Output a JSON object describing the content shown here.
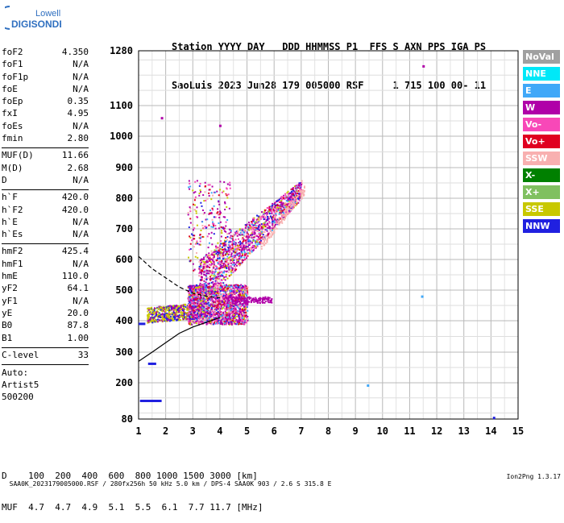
{
  "logo": {
    "line1": "Lowell",
    "line2": "DIGISONDE"
  },
  "header": {
    "line1": "Station YYYY DAY   DDD HHMMSS P1  FFS S AXN PPS IGA PS",
    "line2": "SaoLuis 2023 Jun28 179 005000 RSF     1 715 100 00- 11"
  },
  "params": [
    {
      "group": [
        {
          "name": "foF2",
          "value": "4.350"
        },
        {
          "name": "foF1",
          "value": "N/A"
        },
        {
          "name": "foF1p",
          "value": "N/A"
        },
        {
          "name": "foE",
          "value": "N/A"
        },
        {
          "name": "foEp",
          "value": "0.35"
        },
        {
          "name": "fxI",
          "value": "4.95"
        },
        {
          "name": "foEs",
          "value": "N/A"
        },
        {
          "name": "fmin",
          "value": "2.80"
        }
      ]
    },
    {
      "group": [
        {
          "name": "MUF(D)",
          "value": "11.66"
        },
        {
          "name": "M(D)",
          "value": "2.68"
        },
        {
          "name": "D",
          "value": "N/A"
        }
      ]
    },
    {
      "group": [
        {
          "name": "h`F",
          "value": "420.0"
        },
        {
          "name": "h`F2",
          "value": "420.0"
        },
        {
          "name": "h`E",
          "value": "N/A"
        },
        {
          "name": "h`Es",
          "value": "N/A"
        }
      ]
    },
    {
      "group": [
        {
          "name": "hmF2",
          "value": "425.4"
        },
        {
          "name": "hmF1",
          "value": "N/A"
        },
        {
          "name": "hmE",
          "value": "110.0"
        },
        {
          "name": "yF2",
          "value": "64.1"
        },
        {
          "name": "yF1",
          "value": "N/A"
        },
        {
          "name": "yE",
          "value": "20.0"
        },
        {
          "name": "B0",
          "value": "87.8"
        },
        {
          "name": "B1",
          "value": "1.00"
        }
      ]
    },
    {
      "group": [
        {
          "name": "C-level",
          "value": "33"
        }
      ]
    }
  ],
  "auto": {
    "line1": "Auto:",
    "line2": "Artist5",
    "line3": "500200"
  },
  "legend": [
    {
      "label": "NoVal",
      "color": "#a0a0a0"
    },
    {
      "label": "NNE",
      "color": "#00e8f8"
    },
    {
      "label": "E",
      "color": "#40a8f8"
    },
    {
      "label": "W",
      "color": "#b000a8"
    },
    {
      "label": "Vo-",
      "color": "#f848b8"
    },
    {
      "label": "Vo+",
      "color": "#e00020"
    },
    {
      "label": "SSW",
      "color": "#f8b0b0"
    },
    {
      "label": "X-",
      "color": "#008000"
    },
    {
      "label": "X+",
      "color": "#80c060"
    },
    {
      "label": "SSE",
      "color": "#c8c800"
    },
    {
      "label": "NNW",
      "color": "#2020e0"
    }
  ],
  "chart_data": {
    "type": "scatter",
    "x_ticks": [
      "1",
      "2",
      "3",
      "4",
      "5",
      "6",
      "7",
      "8",
      "9",
      "10",
      "11",
      "12",
      "13",
      "14",
      "15"
    ],
    "y_ticks": [
      "80",
      "200",
      "300",
      "400",
      "500",
      "600",
      "700",
      "800",
      "900",
      "1000",
      "1100",
      "1280"
    ],
    "xlim": [
      1,
      15
    ],
    "ylim": [
      80,
      1280
    ],
    "y_major": [
      80,
      200,
      300,
      400,
      500,
      600,
      700,
      800,
      900,
      1000,
      1100,
      1280
    ],
    "grid": true,
    "clusters": [
      {
        "x": [
          1.3,
          3.0
        ],
        "y": [
          395,
          440
        ],
        "color": "#c8c800",
        "note": "F-layer trace low"
      },
      {
        "x": [
          2.8,
          5.0
        ],
        "y": [
          390,
          520
        ],
        "color": "#b000a8"
      },
      {
        "x": [
          3.0,
          7.0
        ],
        "y": [
          500,
          830
        ],
        "color": "#b000a8"
      },
      {
        "x": [
          2.7,
          4.0
        ],
        "y": [
          480,
          860
        ],
        "color": "#b000a8"
      }
    ],
    "profile_solid": [
      [
        1.0,
        270
      ],
      [
        1.5,
        300
      ],
      [
        2.0,
        330
      ],
      [
        2.5,
        360
      ],
      [
        3.0,
        380
      ],
      [
        3.5,
        395
      ],
      [
        4.0,
        410
      ]
    ],
    "profile_dashed": [
      [
        1.0,
        610
      ],
      [
        1.5,
        570
      ],
      [
        2.0,
        540
      ],
      [
        2.5,
        510
      ],
      [
        3.0,
        490
      ],
      [
        3.5,
        480
      ],
      [
        4.0,
        475
      ]
    ],
    "blue_segments": [
      {
        "x1": 1.05,
        "x2": 1.85,
        "y": 140
      },
      {
        "x1": 1.35,
        "x2": 1.65,
        "y": 262
      },
      {
        "x1": 1.0,
        "x2": 1.25,
        "y": 390
      }
    ],
    "isolated_points": [
      {
        "x": 11.5,
        "y": 1230,
        "color": "#b000a8"
      },
      {
        "x": 1.85,
        "y": 1060,
        "color": "#b000a8"
      },
      {
        "x": 4.0,
        "y": 1035,
        "color": "#b000a8"
      },
      {
        "x": 9.45,
        "y": 192,
        "color": "#40a8f8"
      },
      {
        "x": 11.45,
        "y": 480,
        "color": "#40a8f8"
      },
      {
        "x": 14.1,
        "y": 85,
        "color": "#2020e0"
      }
    ]
  },
  "footer": {
    "line1": "D    100  200  400  600  800 1000 1500 3000 [km]",
    "line2": "MUF  4.7  4.7  4.9  5.1  5.5  6.1  7.7 11.7 [MHz]"
  },
  "bottom": {
    "left": "SAA0K_2023179005000.RSF / 280fx256h 50 kHz 5.0 km / DPS-4 SAA0K 903 / 2.6 S 315.8 E",
    "right": "Ion2Png 1.3.17"
  }
}
